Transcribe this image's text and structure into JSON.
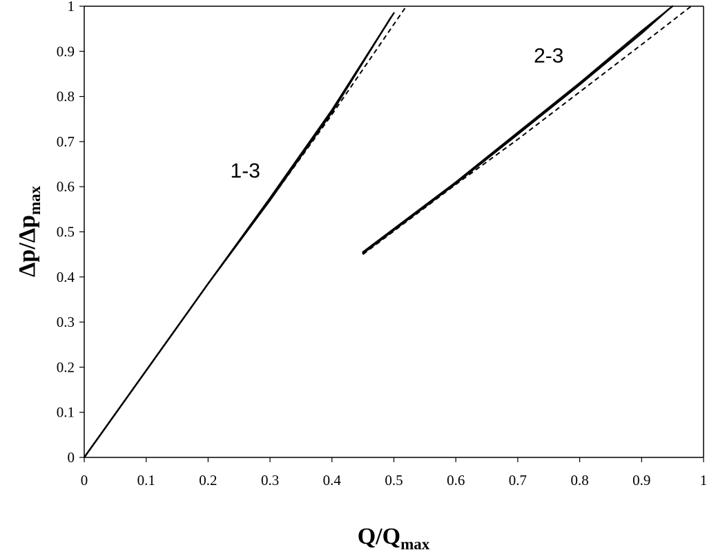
{
  "chart_data": {
    "type": "line",
    "title": "",
    "xlabel": {
      "main": "Q/Q",
      "sub": "max"
    },
    "ylabel": {
      "main": "Δp/Δp",
      "sub": "max"
    },
    "xlim": [
      0,
      1
    ],
    "ylim": [
      0,
      1
    ],
    "xticks": [
      0,
      0.1,
      0.2,
      0.3,
      0.4,
      0.5,
      0.6,
      0.7,
      0.8,
      0.9,
      1
    ],
    "xtick_labels": [
      "0",
      "0.1",
      "0.2",
      "0.3",
      "0.4",
      "0.5",
      "0.6",
      "0.7",
      "0.8",
      "0.9",
      "1"
    ],
    "yticks": [
      0,
      0.1,
      0.2,
      0.3,
      0.4,
      0.5,
      0.6,
      0.7,
      0.8,
      0.9,
      1
    ],
    "ytick_labels": [
      "0",
      "0.1",
      "0.2",
      "0.3",
      "0.4",
      "0.5",
      "0.6",
      "0.7",
      "0.8",
      "0.9",
      "1"
    ],
    "grid": false,
    "legend": "none",
    "series": [
      {
        "style": "solid",
        "color": "#000000",
        "x": [
          0,
          0.2,
          0.3,
          0.4,
          0.5
        ],
        "y": [
          0,
          0.385,
          0.575,
          0.77,
          0.985
        ]
      },
      {
        "style": "solid",
        "color": "#000000",
        "x": [
          0,
          0.2,
          0.3,
          0.4,
          0.495
        ],
        "y": [
          0,
          0.385,
          0.57,
          0.765,
          0.975
        ]
      },
      {
        "style": "dashed",
        "color": "#000000",
        "x": [
          0,
          0.2,
          0.3,
          0.4,
          0.52
        ],
        "y": [
          0,
          0.385,
          0.57,
          0.76,
          1.0
        ]
      },
      {
        "style": "solid",
        "color": "#000000",
        "x": [
          0.45,
          0.6,
          0.7,
          0.8,
          0.9,
          0.95
        ],
        "y": [
          0.455,
          0.61,
          0.72,
          0.83,
          0.945,
          1.0
        ]
      },
      {
        "style": "solid",
        "color": "#000000",
        "x": [
          0.45,
          0.6,
          0.7,
          0.8,
          0.9,
          0.945
        ],
        "y": [
          0.452,
          0.607,
          0.716,
          0.826,
          0.94,
          0.995
        ]
      },
      {
        "style": "dashed",
        "color": "#000000",
        "x": [
          0.45,
          0.6,
          0.7,
          0.8,
          0.9,
          0.98
        ],
        "y": [
          0.45,
          0.605,
          0.705,
          0.81,
          0.915,
          1.0
        ]
      }
    ],
    "annotations": [
      {
        "text": "1-3",
        "x": 0.26,
        "y": 0.62
      },
      {
        "text": "2-3",
        "x": 0.75,
        "y": 0.875
      }
    ]
  }
}
